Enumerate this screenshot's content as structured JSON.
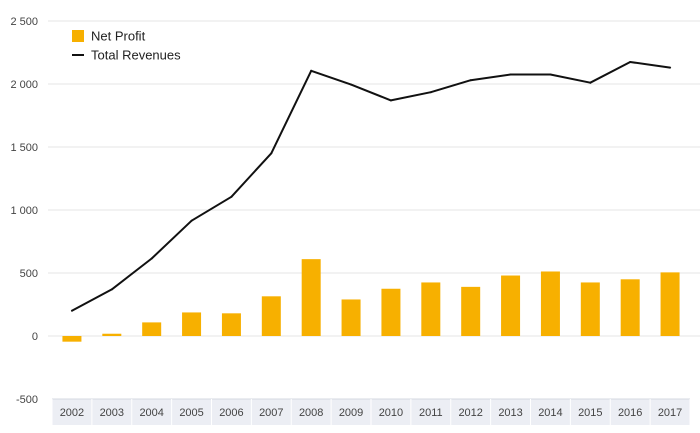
{
  "chart_data": {
    "type": "bar+line",
    "title": "",
    "xlabel": "",
    "ylabel": "",
    "categories": [
      "2002",
      "2003",
      "2004",
      "2005",
      "2006",
      "2007",
      "2008",
      "2009",
      "2010",
      "2011",
      "2012",
      "2013",
      "2014",
      "2015",
      "2016",
      "2017"
    ],
    "series": [
      {
        "name": "Net Profit",
        "type": "bar",
        "color": "#f7b000",
        "values": [
          -45,
          18,
          108,
          187,
          180,
          315,
          610,
          290,
          375,
          425,
          390,
          480,
          512,
          425,
          450,
          505
        ]
      },
      {
        "name": "Total Revenues",
        "type": "line",
        "color": "#111111",
        "values": [
          200,
          370,
          615,
          915,
          1105,
          1450,
          2105,
          1995,
          1870,
          1935,
          2030,
          2075,
          2075,
          2010,
          2175,
          2130
        ]
      }
    ],
    "ylim": [
      -500,
      2500
    ],
    "yticks": [
      -500,
      0,
      500,
      1000,
      1500,
      2000,
      2500
    ],
    "ytick_labels": [
      "-500",
      "0",
      "500",
      "1 000",
      "1 500",
      "2 000",
      "2 500"
    ],
    "grid": true,
    "legend_position": "top-left"
  }
}
